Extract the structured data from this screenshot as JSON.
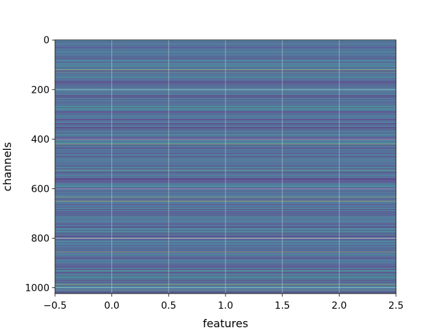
{
  "chart_data": {
    "type": "heatmap",
    "title": "",
    "xlabel": "features",
    "ylabel": "channels",
    "xlim": [
      -0.5,
      2.5
    ],
    "ylim": [
      1023.5,
      -0.5
    ],
    "y_inverted": true,
    "grid": true,
    "colormap": "viridis",
    "n_rows": 1024,
    "n_cols": 3,
    "row_value_range": [
      0,
      1
    ],
    "values_constant_across_columns": true,
    "x_ticks": [
      -0.5,
      0.0,
      0.5,
      1.0,
      1.5,
      2.0,
      2.5
    ],
    "x_tick_labels": [
      "−0.5",
      "0.0",
      "0.5",
      "1.0",
      "1.5",
      "2.0",
      "2.5"
    ],
    "y_ticks": [
      0,
      200,
      400,
      600,
      800,
      1000
    ],
    "y_tick_labels": [
      "0",
      "200",
      "400",
      "600",
      "800",
      "1000"
    ],
    "highlight_rows": [
      0,
      120,
      130,
      420,
      525,
      635,
      650,
      800,
      855,
      985,
      990,
      1010
    ]
  }
}
